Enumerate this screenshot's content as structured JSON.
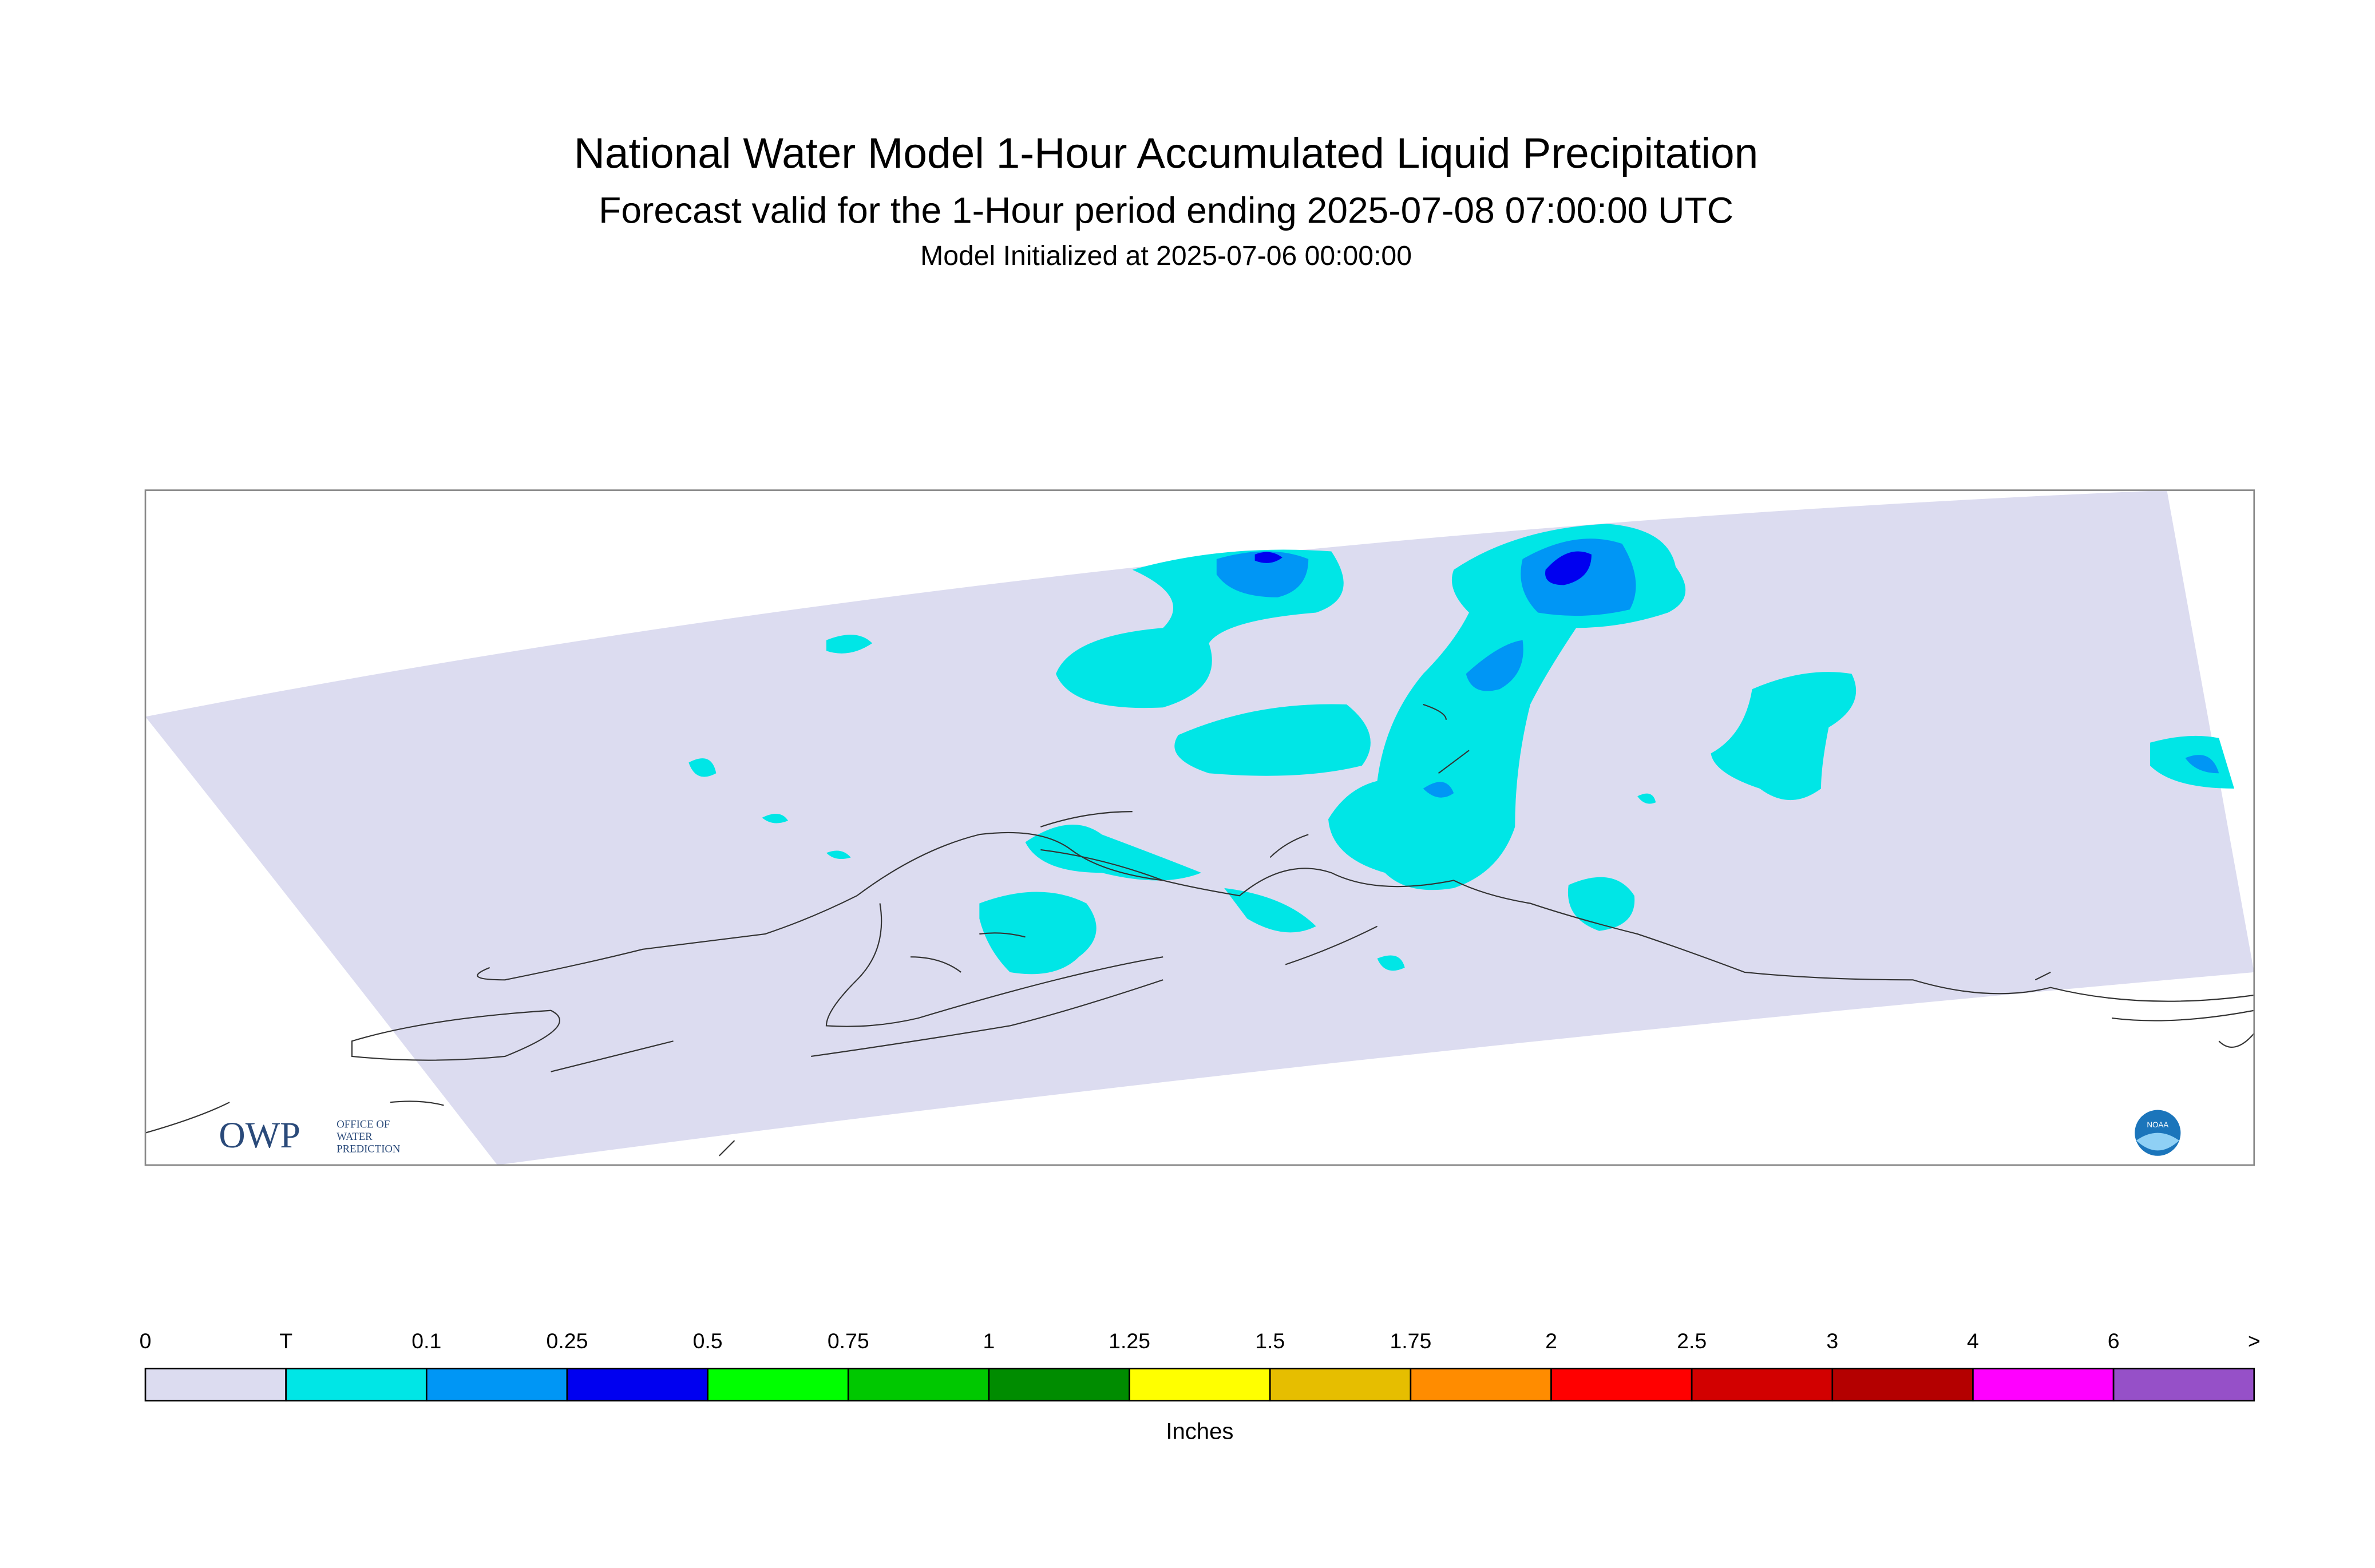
{
  "header": {
    "title": "National Water Model 1-Hour Accumulated Liquid Precipitation",
    "subtitle": "Forecast valid for the 1-Hour period ending 2025-07-08 07:00:00 UTC",
    "init": "Model Initialized at 2025-07-06 00:00:00"
  },
  "logos": {
    "owp": "OWP",
    "owp_lines": [
      "OFFICE OF",
      "WATER",
      "PREDICTION"
    ],
    "noaa": "NOAA"
  },
  "legend": {
    "labels": [
      "0",
      "T",
      "0.1",
      "0.25",
      "0.5",
      "0.75",
      "1",
      "1.25",
      "1.5",
      "1.75",
      "2",
      "2.5",
      "3",
      "4",
      "6",
      ">"
    ],
    "colors": [
      "#dcdcf0",
      "#00e6e6",
      "#0096f5",
      "#0000f0",
      "#00ff00",
      "#00c800",
      "#008c00",
      "#ffff00",
      "#e6be00",
      "#ff8c00",
      "#ff0000",
      "#d20000",
      "#b40000",
      "#ff00ff",
      "#9650c8"
    ],
    "unit": "Inches"
  }
}
